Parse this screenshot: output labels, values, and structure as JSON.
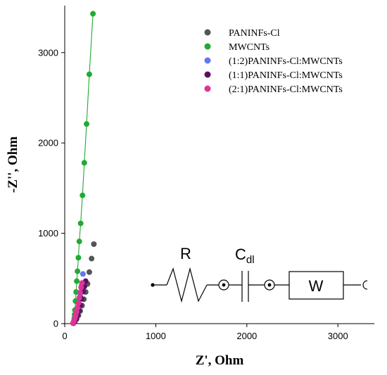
{
  "chart_data": {
    "type": "scatter",
    "xlabel": "Z', Ohm",
    "ylabel": "-Z'', Ohm",
    "xlim": [
      0,
      3400
    ],
    "ylim": [
      0,
      3520
    ],
    "xticks": [
      0,
      1000,
      2000,
      3000
    ],
    "yticks": [
      0,
      1000,
      2000,
      3000
    ],
    "grid": false,
    "legend_position": "top-right",
    "series": [
      {
        "name": "PANINFs-Cl",
        "color": "#555555",
        "x": [
          95,
          110,
          130,
          150,
          170,
          190,
          210,
          230,
          250,
          270,
          295,
          320
        ],
        "y": [
          5,
          20,
          50,
          90,
          140,
          200,
          270,
          350,
          440,
          570,
          720,
          880
        ]
      },
      {
        "name": "MWCNTs",
        "color": "#22aa33",
        "line": true,
        "x": [
          95,
          100,
          105,
          108,
          112,
          118,
          125,
          132,
          140,
          150,
          160,
          175,
          195,
          215,
          240,
          270,
          310
        ],
        "y": [
          5,
          30,
          60,
          100,
          150,
          250,
          350,
          470,
          580,
          730,
          910,
          1110,
          1420,
          1780,
          2210,
          2760,
          3430
        ]
      },
      {
        "name": "(1:2)PANINFs-Cl:MWCNTs",
        "color": "#6677ee",
        "x": [
          95,
          105,
          115,
          125,
          140,
          155,
          170,
          185,
          200
        ],
        "y": [
          5,
          25,
          55,
          95,
          150,
          220,
          310,
          420,
          550
        ]
      },
      {
        "name": "(1:1)PANINFs-Cl:MWCNTs",
        "color": "#5a1060",
        "x": [
          95,
          110,
          125,
          140,
          155,
          170,
          185,
          200,
          215,
          230
        ],
        "y": [
          5,
          25,
          55,
          95,
          145,
          205,
          275,
          355,
          410,
          470
        ]
      },
      {
        "name": "(2:1)PANINFs-Cl:MWCNTs",
        "color": "#dd3399",
        "x": [
          90,
          100,
          110,
          120,
          130,
          140,
          150,
          160,
          170,
          180,
          190
        ],
        "y": [
          5,
          25,
          55,
          90,
          130,
          175,
          225,
          285,
          345,
          400,
          450
        ]
      }
    ]
  },
  "circuit": {
    "r_label": "R",
    "c_main": "C",
    "c_sub": "dl",
    "w_label": "W"
  }
}
